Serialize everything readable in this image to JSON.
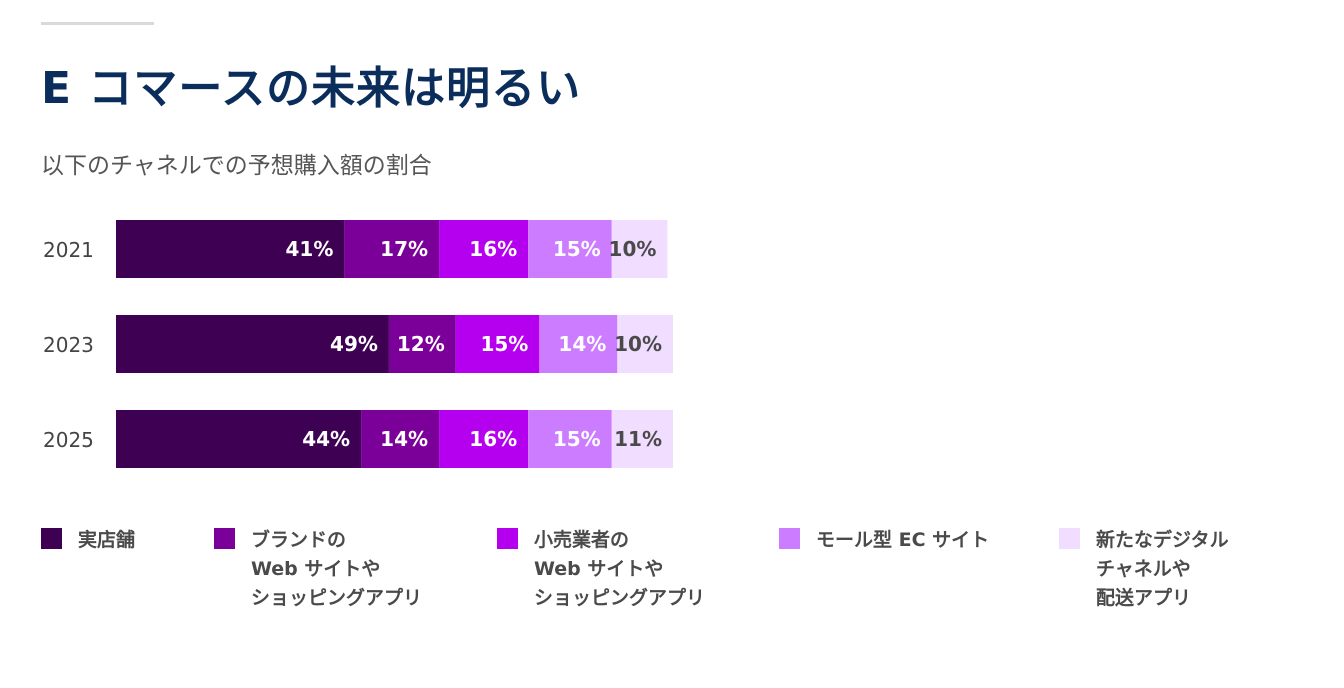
{
  "header": {
    "title": "E コマースの未来は明るい",
    "subtitle": "以下のチャネルでの予想購入額の割合"
  },
  "colors": {
    "accent_line": "#d9d9d9",
    "title": "#0b2d5b",
    "series": [
      "#3d0053",
      "#7b0099",
      "#b500f0",
      "#cc7dff",
      "#f1ddff"
    ],
    "label_light": "#ffffff",
    "label_dark": "#4a4a4a"
  },
  "legend": [
    {
      "lines": [
        "実店舗"
      ]
    },
    {
      "lines": [
        "ブランドの",
        "Web サイトや",
        "ショッピングアプリ"
      ]
    },
    {
      "lines": [
        "小売業者の",
        "Web サイトや",
        "ショッピングアプリ"
      ]
    },
    {
      "lines": [
        "モール型 EC サイト"
      ]
    },
    {
      "lines": [
        "新たなデジタル",
        "チャネルや",
        "配送アプリ"
      ]
    }
  ],
  "chart_data": {
    "type": "bar",
    "orientation": "horizontal",
    "stacked": true,
    "categories": [
      "2021",
      "2023",
      "2025"
    ],
    "series": [
      {
        "name": "実店舗",
        "values": [
          41,
          49,
          44
        ]
      },
      {
        "name": "ブランドの Web サイトや ショッピングアプリ",
        "values": [
          17,
          12,
          14
        ]
      },
      {
        "name": "小売業者の Web サイトや ショッピングアプリ",
        "values": [
          16,
          15,
          16
        ]
      },
      {
        "name": "モール型 EC サイト",
        "values": [
          15,
          14,
          15
        ]
      },
      {
        "name": "新たなデジタル チャネルや 配送アプリ",
        "values": [
          10,
          10,
          11
        ]
      }
    ],
    "value_labels": [
      [
        "41%",
        "17%",
        "16%",
        "15%",
        "10%"
      ],
      [
        "49%",
        "12%",
        "15%",
        "14%",
        "10%"
      ],
      [
        "44%",
        "14%",
        "16%",
        "15%",
        "11%"
      ]
    ],
    "unit": "%",
    "grid": false,
    "legend_position": "bottom"
  }
}
